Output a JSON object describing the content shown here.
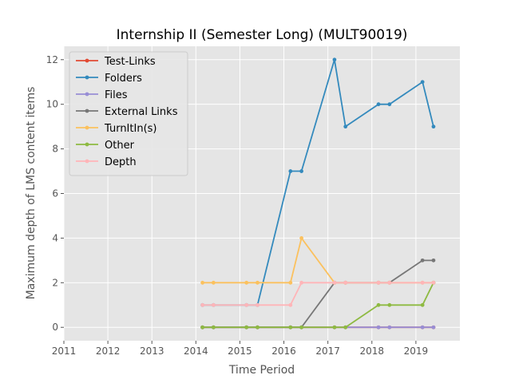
{
  "chart_data": {
    "type": "line",
    "title": "Internship II (Semester Long) (MULT90019)",
    "xlabel": "Time Period",
    "ylabel": "Maximum depth of LMS content items",
    "xlim": [
      2011,
      2020
    ],
    "ylim": [
      -0.6,
      12.6
    ],
    "xticks": [
      2011,
      2012,
      2013,
      2014,
      2015,
      2016,
      2017,
      2018,
      2019
    ],
    "xtick_labels": [
      "2011",
      "2012",
      "2013",
      "2014",
      "2015",
      "2016",
      "2017",
      "2018",
      "2019"
    ],
    "yticks": [
      0,
      2,
      4,
      6,
      8,
      10,
      12
    ],
    "ytick_labels": [
      "0",
      "2",
      "4",
      "6",
      "8",
      "10",
      "12"
    ],
    "grid": true,
    "legend_position": "top-left",
    "x": [
      2014.15,
      2014.4,
      2015.15,
      2015.4,
      2016.15,
      2016.4,
      2017.15,
      2017.4,
      2018.15,
      2018.4,
      2019.15,
      2019.4
    ],
    "series": [
      {
        "name": "Test-Links",
        "color": "#e24a33",
        "values": [
          0,
          0,
          0,
          0,
          0,
          0,
          0,
          0,
          0,
          0,
          0,
          0
        ]
      },
      {
        "name": "Folders",
        "color": "#348abd",
        "values": [
          1,
          1,
          1,
          1,
          7,
          7,
          12,
          9,
          10,
          10,
          11,
          9
        ]
      },
      {
        "name": "Files",
        "color": "#988ed5",
        "values": [
          0,
          0,
          0,
          0,
          0,
          0,
          0,
          0,
          0,
          0,
          0,
          0
        ]
      },
      {
        "name": "External Links",
        "color": "#777777",
        "values": [
          0,
          0,
          0,
          0,
          0,
          0,
          2,
          2,
          2,
          2,
          3,
          3
        ]
      },
      {
        "name": "TurnItIn(s)",
        "color": "#fbc15e",
        "values": [
          2,
          2,
          2,
          2,
          2,
          4,
          2,
          2,
          2,
          2,
          2,
          2
        ]
      },
      {
        "name": "Other",
        "color": "#8eba42",
        "values": [
          0,
          0,
          0,
          0,
          0,
          0,
          0,
          0,
          1,
          1,
          1,
          2
        ]
      },
      {
        "name": "Depth",
        "color": "#ffb5b8",
        "values": [
          1,
          1,
          1,
          1,
          1,
          2,
          2,
          2,
          2,
          2,
          2,
          2
        ]
      }
    ]
  }
}
